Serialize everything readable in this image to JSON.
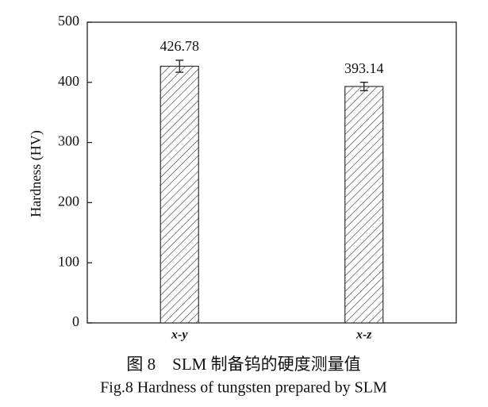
{
  "chart_data": {
    "type": "bar",
    "categories": [
      "x-y",
      "x-z"
    ],
    "values": [
      426.78,
      393.14
    ],
    "errors": [
      10,
      7
    ],
    "ylabel": "Hardness (HV)",
    "ylim": [
      0,
      500
    ],
    "yticks": [
      0,
      100,
      200,
      300,
      400,
      500
    ],
    "color": "#333333",
    "captions": [
      "图 8　SLM 制备钨的硬度测量值",
      "Fig.8 Hardness of tungsten prepared by SLM"
    ]
  }
}
